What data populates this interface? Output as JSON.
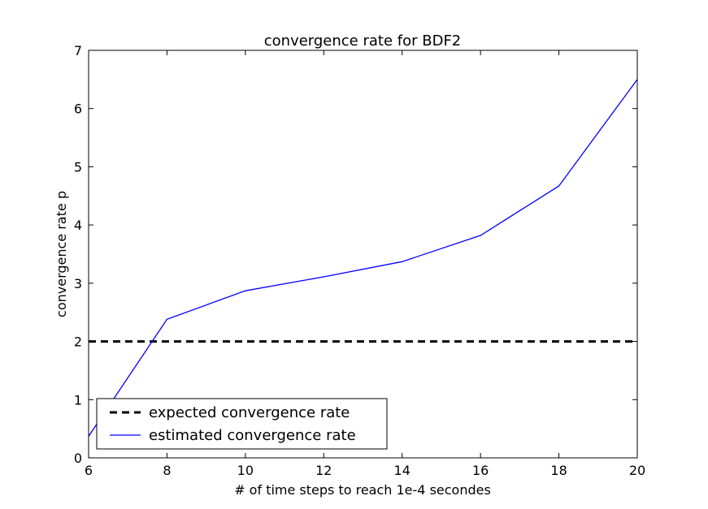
{
  "chart_data": {
    "type": "line",
    "title": "convergence rate for BDF2",
    "xlabel": "# of time steps to reach 1e-4 secondes",
    "ylabel": "convergence rate p",
    "xlim": [
      6,
      20
    ],
    "ylim": [
      0,
      7
    ],
    "xticks": [
      6,
      8,
      10,
      12,
      14,
      16,
      18,
      20
    ],
    "yticks": [
      0,
      1,
      2,
      3,
      4,
      5,
      6,
      7
    ],
    "grid": false,
    "legend_position": "lower-left",
    "series": [
      {
        "name": "expected convergence rate",
        "style": "dashed",
        "color": "#000000",
        "x": [
          6,
          20
        ],
        "y": [
          2,
          2
        ]
      },
      {
        "name": "estimated convergence rate",
        "style": "solid",
        "color": "#0000ff",
        "x": [
          6,
          8,
          10,
          12,
          14,
          16,
          18,
          20
        ],
        "y": [
          0.37,
          2.38,
          2.87,
          3.11,
          3.37,
          3.82,
          4.67,
          6.5
        ]
      }
    ]
  }
}
